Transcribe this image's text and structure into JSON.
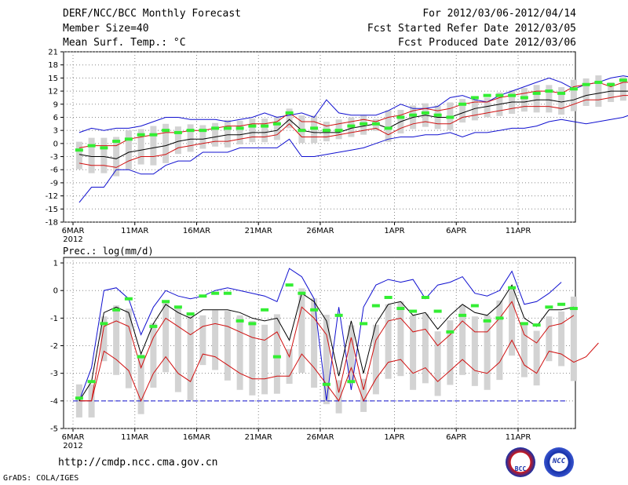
{
  "header": {
    "title": "DERF/NCC/BCC Monthly Forecast",
    "member_size": "Member Size=40",
    "variable": "Mean Surf. Temp.: °C",
    "forecast_range": "For 2012/03/06-2012/04/14",
    "started": "Fcst Started Refer Date 2012/03/05",
    "produced": "Fcst Produced Date 2012/03/06"
  },
  "footer": {
    "url": "http://cmdp.ncc.cma.gov.cn",
    "credit": "GrADS: COLA/IGES",
    "logo_left_text": "BCC",
    "logo_right_text": "NCC"
  },
  "colors": {
    "envelope": "#1010d0",
    "spread": "#d01010",
    "mean": "#000000",
    "box": "#d3d3d3",
    "marker": "#33ee33",
    "grid": "#888888"
  },
  "chart_data": [
    {
      "type": "line",
      "title": "Mean Surf. Temp.: °C",
      "xlabel": "",
      "ylabel": "°C",
      "ylim": [
        -18,
        21
      ],
      "yticks": [
        21,
        18,
        15,
        12,
        9,
        6,
        3,
        0,
        -3,
        -6,
        -9,
        -12,
        -15,
        -18
      ],
      "x_tick_labels": [
        "6MAR",
        "11MAR",
        "16MAR",
        "21MAR",
        "26MAR",
        "1APR",
        "6APR",
        "11APR"
      ],
      "x_tick_days": [
        0,
        5,
        10,
        15,
        20,
        26,
        31,
        36
      ],
      "year_label": "2012",
      "days": 40,
      "series": [
        {
          "name": "max",
          "values": [
            2.5,
            3.5,
            3,
            3.5,
            3.5,
            4,
            5,
            6,
            6,
            5.5,
            5.5,
            5.5,
            5,
            5.5,
            6,
            7,
            6,
            6.5,
            7,
            6,
            10,
            7,
            6.5,
            6.5,
            6.5,
            7.5,
            9,
            8,
            8,
            8.5,
            10.5,
            11,
            10,
            9.5,
            11,
            12,
            13,
            14,
            15,
            14,
            12.5,
            13.5,
            14,
            15,
            15.5,
            15,
            14.5,
            14,
            16
          ]
        },
        {
          "name": "upper",
          "values": [
            -1,
            -0.5,
            -0.5,
            -0.5,
            1,
            1.5,
            2,
            2.5,
            2.5,
            3,
            3,
            3.5,
            4,
            4,
            4.5,
            4.5,
            5,
            7,
            5,
            5,
            4,
            4.5,
            5,
            5.5,
            5,
            6,
            6.5,
            7.5,
            8,
            7.5,
            8,
            9,
            9.5,
            9.5,
            10.5,
            11,
            11.5,
            12,
            12,
            11.5,
            13,
            13.5,
            14,
            13,
            14,
            14,
            14,
            14,
            13.5
          ]
        },
        {
          "name": "mean",
          "values": [
            -2.5,
            -3,
            -3,
            -3.5,
            -2,
            -1.5,
            -1,
            -0.5,
            0.5,
            1,
            1,
            1.5,
            2,
            2,
            2.5,
            2.5,
            3,
            5.5,
            3,
            2.5,
            2.5,
            2.5,
            3.5,
            4,
            4.5,
            3.5,
            5,
            6,
            6.5,
            6,
            6,
            7,
            8,
            8.5,
            9,
            9.5,
            9.5,
            10,
            10,
            9.5,
            10,
            11,
            11.5,
            12,
            12,
            12,
            12.5,
            12,
            11.5,
            10.5,
            12
          ]
        },
        {
          "name": "lower",
          "values": [
            -4.5,
            -5,
            -5,
            -5.5,
            -4,
            -3,
            -3,
            -2.5,
            -1,
            -0.5,
            0,
            0.5,
            0.5,
            1,
            1.5,
            1.5,
            2,
            4.5,
            1.5,
            1.5,
            1.5,
            2,
            2.5,
            3,
            3.5,
            2,
            3.5,
            4.5,
            5,
            4.5,
            4.5,
            6,
            6.5,
            7,
            7.5,
            8,
            8.5,
            8.5,
            8.5,
            8,
            9,
            10,
            10,
            10.5,
            11,
            11,
            11,
            11,
            10.5,
            9,
            11
          ]
        },
        {
          "name": "min",
          "values": [
            -13.5,
            -10,
            -10,
            -6,
            -6,
            -7,
            -7,
            -5,
            -4,
            -4,
            -2,
            -2,
            -2,
            -1,
            -1,
            -1,
            -1,
            1,
            -3,
            -3,
            -2.5,
            -2,
            -1.5,
            -1,
            0,
            1,
            1.5,
            1.5,
            2,
            2,
            2.5,
            1.5,
            2.5,
            2.5,
            3,
            3.5,
            3.5,
            4,
            5,
            5.5,
            5,
            4.5,
            5,
            5.5,
            6,
            7,
            7.5,
            8,
            7.5,
            6,
            7
          ]
        },
        {
          "name": "markers",
          "values": [
            -1.5,
            -0.5,
            -1,
            0.5,
            1,
            2,
            2,
            3,
            2.5,
            3,
            3,
            3.5,
            3.5,
            3.5,
            4,
            4,
            4.5,
            7,
            3,
            3.5,
            3,
            3,
            4,
            4.5,
            4.5,
            3.5,
            6,
            6.5,
            7,
            6.5,
            6,
            9,
            10.5,
            11,
            11,
            11,
            10.5,
            11.5,
            12,
            11.5,
            12.5,
            13.5,
            14,
            13.5,
            14.5,
            14,
            13,
            11.5,
            14.5
          ]
        }
      ]
    },
    {
      "type": "line",
      "title": "Prec.: log(mm/d)",
      "xlabel": "",
      "ylabel": "log(mm/d)",
      "ylim": [
        -5,
        1.2
      ],
      "yticks": [
        1,
        0,
        -1,
        -2,
        -3,
        -4,
        -5
      ],
      "x_tick_labels": [
        "6MAR",
        "11MAR",
        "16MAR",
        "21MAR",
        "26MAR",
        "1APR",
        "6APR",
        "11APR"
      ],
      "x_tick_days": [
        0,
        5,
        10,
        15,
        20,
        26,
        31,
        36
      ],
      "year_label": "2012",
      "days": 40,
      "baseline": -4,
      "series": [
        {
          "name": "max",
          "values": [
            -4,
            -2.8,
            0,
            0.1,
            -0.3,
            -1.6,
            -0.6,
            0,
            -0.2,
            -0.3,
            -0.2,
            0,
            0.1,
            0,
            -0.1,
            -0.2,
            -0.4,
            0.8,
            0.5,
            -0.3,
            -4,
            -0.6,
            -3.6,
            -0.6,
            0.2,
            0.4,
            0.3,
            0.4,
            -0.3,
            0.2,
            0.3,
            0.5,
            -0.1,
            -0.2,
            0,
            0.7,
            -0.5,
            -0.4,
            -0.1,
            0.3
          ]
        },
        {
          "name": "mean",
          "values": [
            -4,
            -3.3,
            -0.8,
            -0.6,
            -0.8,
            -2.3,
            -1.2,
            -0.5,
            -0.8,
            -1,
            -0.7,
            -0.7,
            -0.7,
            -0.8,
            -1,
            -1.1,
            -1,
            -1.8,
            -0.1,
            -0.4,
            -1.1,
            -3.1,
            -1.1,
            -3,
            -1.2,
            -0.5,
            -0.4,
            -0.9,
            -0.8,
            -1.4,
            -0.9,
            -0.5,
            -0.8,
            -0.9,
            -0.5,
            0.2,
            -1,
            -1.3,
            -0.7,
            -0.7,
            -0.6
          ]
        },
        {
          "name": "upper",
          "values": [
            -4,
            -4,
            -1.3,
            -1.1,
            -1.3,
            -2.8,
            -1.7,
            -1,
            -1.3,
            -1.6,
            -1.3,
            -1.2,
            -1.3,
            -1.5,
            -1.7,
            -1.8,
            -1.5,
            -2.4,
            -0.6,
            -1,
            -1.6,
            -3.7,
            -1.7,
            -3.6,
            -1.8,
            -1.1,
            -1,
            -1.5,
            -1.4,
            -2,
            -1.6,
            -1.1,
            -1.5,
            -1.5,
            -1,
            -0.4,
            -1.6,
            -1.9,
            -1.3,
            -1.2,
            -0.9
          ]
        },
        {
          "name": "lower",
          "values": [
            -4,
            -4,
            -2.2,
            -2.5,
            -2.9,
            -4,
            -3,
            -2.4,
            -3,
            -3.3,
            -2.3,
            -2.4,
            -2.7,
            -3,
            -3.2,
            -3.2,
            -3.1,
            -3.1,
            -2.3,
            -2.8,
            -3.4,
            -4,
            -2.8,
            -4,
            -3.2,
            -2.6,
            -2.5,
            -3,
            -2.8,
            -3.3,
            -2.9,
            -2.5,
            -2.9,
            -3,
            -2.6,
            -1.8,
            -2.7,
            -3,
            -2.2,
            -2.3,
            -2.6,
            -2.4,
            -1.9
          ]
        },
        {
          "name": "markers",
          "values": [
            -3.9,
            -3.3,
            -1.2,
            -0.7,
            -0.3,
            -2.4,
            -1.3,
            -0.4,
            -0.6,
            -0.85,
            -0.2,
            -0.1,
            -0.1,
            -1.1,
            -1.2,
            -0.7,
            -2.4,
            0.2,
            -0.1,
            -0.7,
            -3.4,
            -0.9,
            -3.3,
            -1.2,
            -0.55,
            -0.25,
            -0.65,
            -0.75,
            -0.25,
            -0.75,
            -1.5,
            -0.9,
            -0.55,
            -1.1,
            -1,
            0.1,
            -1.2,
            -1.25,
            -0.6,
            -0.5,
            -0.65
          ]
        }
      ]
    }
  ]
}
